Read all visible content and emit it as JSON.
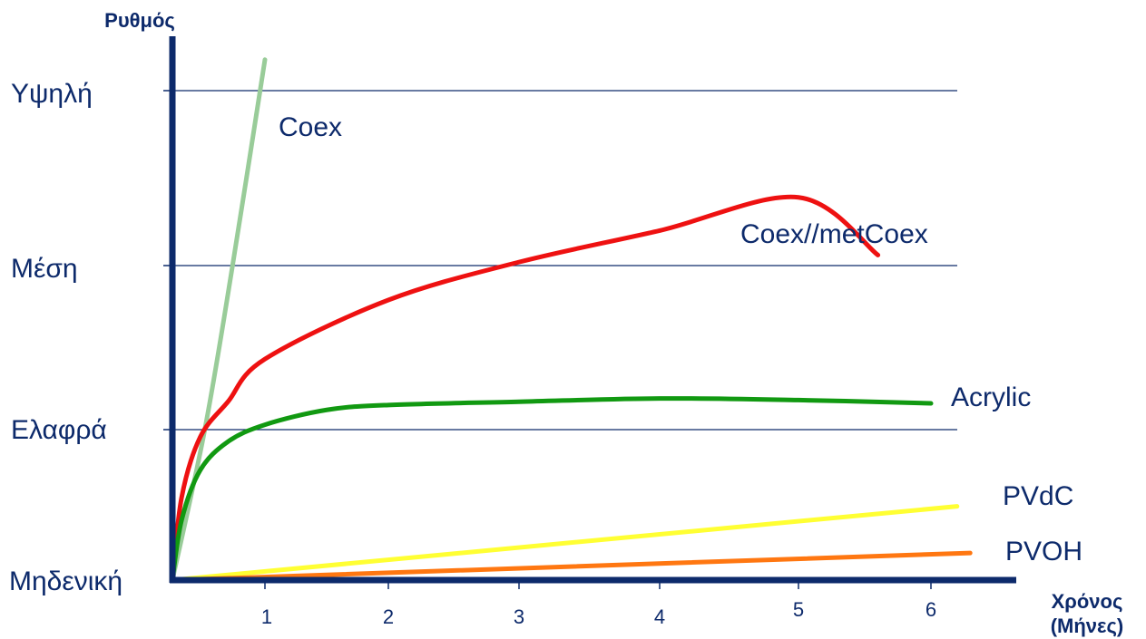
{
  "chart_data": {
    "type": "line",
    "ylabel": "Ρυθμός",
    "xlabel": "Χρόνος (Μήνες)",
    "xlabel_lines": [
      "Χρόνος",
      "(Μήνες)"
    ],
    "x_ticks": [
      "1",
      "2",
      "3",
      "4",
      "5",
      "6"
    ],
    "y_levels": [
      "Μηδενική",
      "Ελαφρά",
      "Μέση",
      "Υψηλή"
    ],
    "grid": true,
    "series": [
      {
        "name": "Coex",
        "color": "#99cc99",
        "points": [
          [
            0,
            0
          ],
          [
            0.35,
            1
          ],
          [
            0.65,
            2
          ],
          [
            1.0,
            3.18
          ]
        ]
      },
      {
        "name": "Coex//metCoex",
        "color": "#ee1111",
        "points": [
          [
            0,
            0
          ],
          [
            0.1,
            0.55
          ],
          [
            0.3,
            0.95
          ],
          [
            0.6,
            1.17
          ],
          [
            1,
            1.43
          ],
          [
            2,
            1.79
          ],
          [
            3,
            2.02
          ],
          [
            4,
            2.2
          ],
          [
            5,
            2.39
          ],
          [
            5.6,
            2.06
          ]
        ]
      },
      {
        "name": "Acrylic",
        "color": "#119911",
        "points": [
          [
            0,
            0
          ],
          [
            0.1,
            0.4
          ],
          [
            0.3,
            0.73
          ],
          [
            0.6,
            0.92
          ],
          [
            1,
            1.03
          ],
          [
            1.5,
            1.12
          ],
          [
            2,
            1.15
          ],
          [
            3,
            1.17
          ],
          [
            4,
            1.19
          ],
          [
            5,
            1.18
          ],
          [
            6,
            1.16
          ]
        ]
      },
      {
        "name": "PVdC",
        "color": "#ffff33",
        "points": [
          [
            0,
            0
          ],
          [
            6.2,
            0.49
          ]
        ]
      },
      {
        "name": "PVOH",
        "color": "#ff7711",
        "points": [
          [
            0,
            0
          ],
          [
            6.3,
            0.18
          ]
        ]
      }
    ]
  }
}
